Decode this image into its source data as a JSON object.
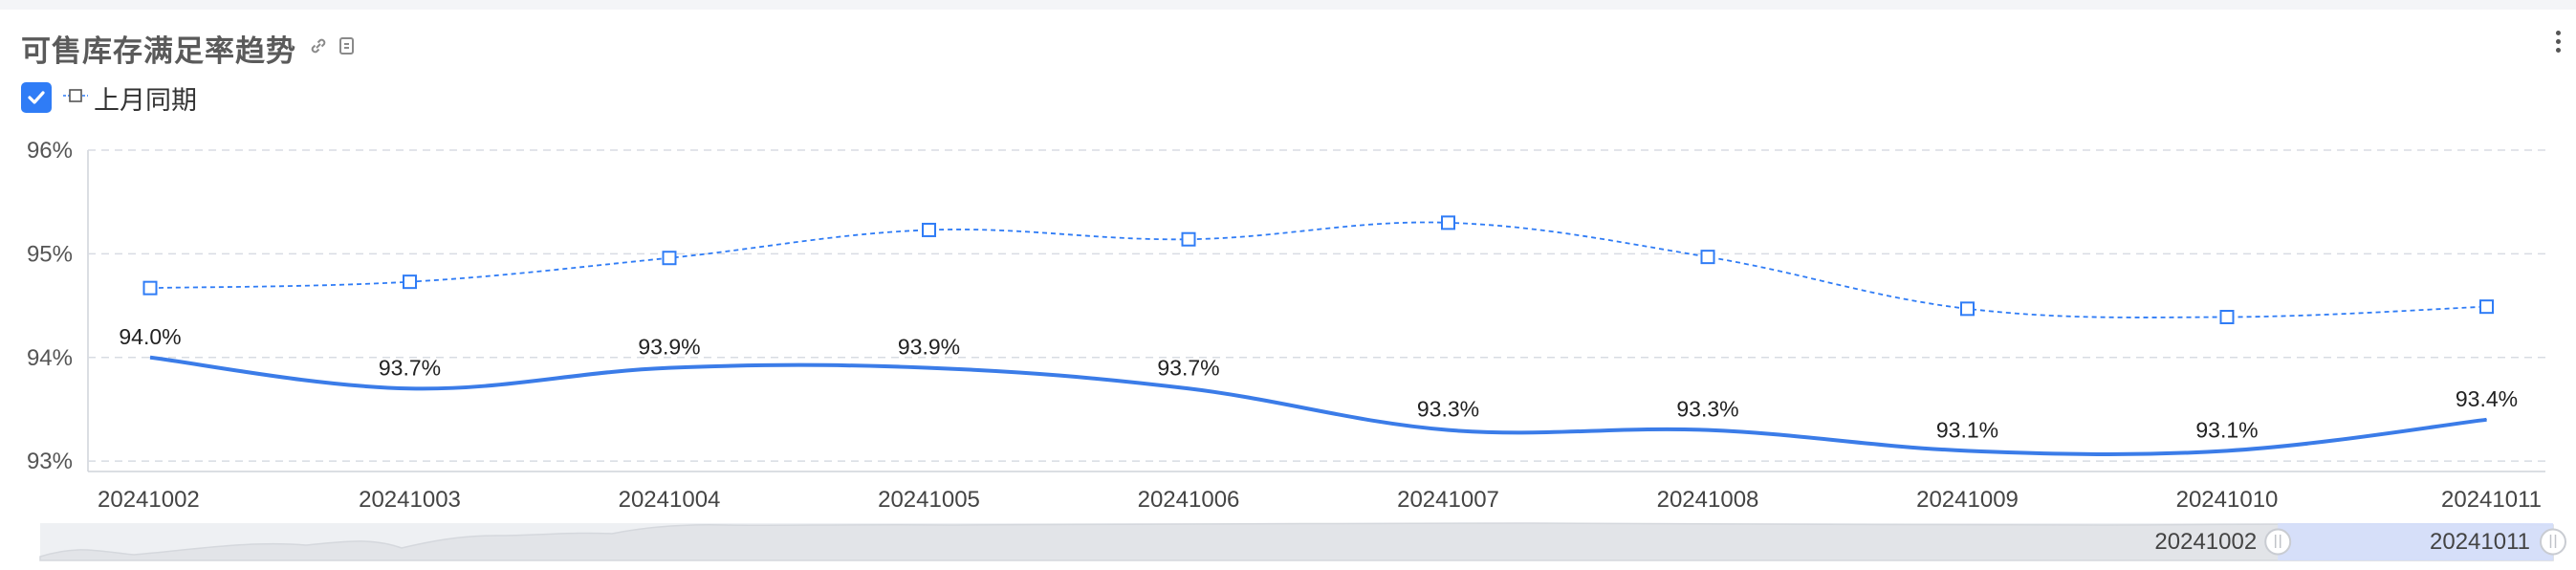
{
  "header": {
    "title": "可售库存满足率趋势",
    "link_icon": "link-icon",
    "copy_icon": "copy-icon",
    "more_icon": "more-vertical-icon"
  },
  "legend": {
    "checkbox_checked": true,
    "label": "上月同期"
  },
  "colors": {
    "primary_line": "#3b7ce8",
    "compare_line": "#2f7cf6",
    "grid": "#d8dce3",
    "slider_fill": "#d3defb"
  },
  "chart_data": {
    "type": "line",
    "categories": [
      "20241002",
      "20241003",
      "20241004",
      "20241005",
      "20241006",
      "20241007",
      "20241008",
      "20241009",
      "20241010",
      "20241011"
    ],
    "series": [
      {
        "values": [
          94.0,
          93.7,
          93.9,
          93.9,
          93.7,
          93.3,
          93.3,
          93.1,
          93.1,
          93.4
        ],
        "labels": [
          "94.0%",
          "93.7%",
          "93.9%",
          "93.9%",
          "93.7%",
          "93.3%",
          "93.3%",
          "93.1%",
          "93.1%",
          "93.4%"
        ],
        "style": "solid"
      },
      {
        "name": "上月同期",
        "values": [
          94.67,
          94.73,
          94.96,
          95.23,
          95.14,
          95.3,
          94.97,
          94.47,
          94.39,
          94.49
        ],
        "style": "dashed",
        "marker": "square"
      }
    ],
    "y_ticks": [
      "96%",
      "95%",
      "94%",
      "93%"
    ],
    "y_tick_values": [
      96,
      95,
      94,
      93
    ],
    "ylim": [
      92.9,
      96
    ],
    "grid": true,
    "datazoom": {
      "start_label": "20241002",
      "end_label": "20241011",
      "start_fraction": 0.9,
      "end_fraction": 1.0
    }
  }
}
